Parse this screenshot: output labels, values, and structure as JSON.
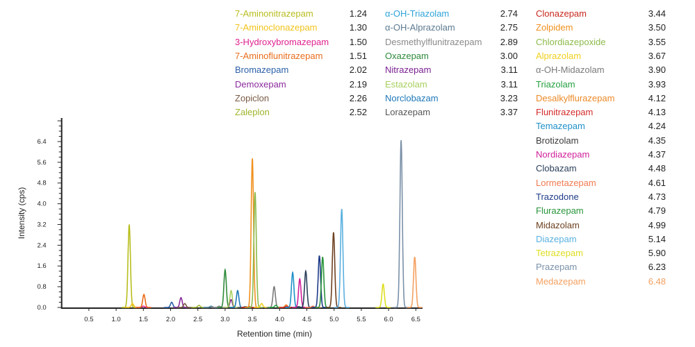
{
  "chart_data": {
    "type": "line",
    "xlabel": "Retention time (min)",
    "ylabel": "Intensity (cps)",
    "xlim": [
      0,
      6.8
    ],
    "ylim": [
      0,
      7.3
    ],
    "xticks": [
      "0.5",
      "1.0",
      "1.5",
      "2.0",
      "2.5",
      "3.0",
      "3.5",
      "4.0",
      "4.5",
      "5.0",
      "5.5",
      "6.0",
      "6.5"
    ],
    "yticks": [
      "0.0",
      "0.8",
      "1.6",
      "2.4",
      "3.2",
      "4.0",
      "4.8",
      "5.6",
      "6.4"
    ],
    "grid": false,
    "legend_placement": "top-right",
    "series": [
      {
        "name": "7-Aminonitrazepam",
        "rt": "1.24",
        "peak": 3.2,
        "color": "#b8bd1e"
      },
      {
        "name": "7-Aminoclonazepam",
        "rt": "1.30",
        "peak": 0.15,
        "color": "#f2c31a"
      },
      {
        "name": "3-Hydroxybromazepam",
        "rt": "1.50",
        "peak": 0.05,
        "color": "#e0208f"
      },
      {
        "name": "7-Aminoflunitrazepam",
        "rt": "1.51",
        "peak": 0.5,
        "color": "#e86c1c"
      },
      {
        "name": "Bromazepam",
        "rt": "2.02",
        "peak": 0.2,
        "color": "#2a5fa8"
      },
      {
        "name": "Demoxepam",
        "rt": "2.19",
        "peak": 0.38,
        "color": "#8a2a9c"
      },
      {
        "name": "Zopiclon",
        "rt": "2.26",
        "peak": 0.15,
        "color": "#7a5a45"
      },
      {
        "name": "Zaleplon",
        "rt": "2.52",
        "peak": 0.08,
        "color": "#9cb52a"
      },
      {
        "name": "α-OH-Triazolam",
        "rt": "2.74",
        "peak": 0.05,
        "color": "#2ea3d8"
      },
      {
        "name": "α-OH-Alprazolam",
        "rt": "2.75",
        "peak": 0.04,
        "color": "#5c7a90"
      },
      {
        "name": "Desmethylflunitrazepam",
        "rt": "2.89",
        "peak": 0.05,
        "color": "#8a8a8a"
      },
      {
        "name": "Oxazepam",
        "rt": "3.00",
        "peak": 1.45,
        "color": "#2e8a3a"
      },
      {
        "name": "Nitrazepam",
        "rt": "3.11",
        "peak": 0.3,
        "color": "#7a2090"
      },
      {
        "name": "Estazolam",
        "rt": "3.11",
        "peak": 0.65,
        "color": "#a8d060"
      },
      {
        "name": "Norclobazam",
        "rt": "3.23",
        "peak": 0.65,
        "color": "#1e78b8"
      },
      {
        "name": "Lorazepam",
        "rt": "3.37",
        "peak": 0.03,
        "color": "#555555"
      },
      {
        "name": "Clonazepam",
        "rt": "3.44",
        "peak": 0.03,
        "color": "#c8281e"
      },
      {
        "name": "Zolpidem",
        "rt": "3.50",
        "peak": 5.75,
        "color": "#f0901e"
      },
      {
        "name": "Chlordiazepoxide",
        "rt": "3.55",
        "peak": 4.45,
        "color": "#8cba4a"
      },
      {
        "name": "Alprazolam",
        "rt": "3.67",
        "peak": 0.15,
        "color": "#f0d020"
      },
      {
        "name": "α-OH-Midazolam",
        "rt": "3.90",
        "peak": 0.8,
        "color": "#7a7a7a"
      },
      {
        "name": "Triazolam",
        "rt": "3.93",
        "peak": 0.08,
        "color": "#24a040"
      },
      {
        "name": "Desalkylflurazepam",
        "rt": "4.12",
        "peak": 0.1,
        "color": "#ec8a28"
      },
      {
        "name": "Flunitrazepam",
        "rt": "4.13",
        "peak": 0.05,
        "color": "#d42a2a"
      },
      {
        "name": "Temazepam",
        "rt": "4.24",
        "peak": 1.35,
        "color": "#1e90c8"
      },
      {
        "name": "Brotizolam",
        "rt": "4.35",
        "peak": 0.03,
        "color": "#3a3a3a"
      },
      {
        "name": "Nordiazepam",
        "rt": "4.37",
        "peak": 1.1,
        "color": "#d0209a"
      },
      {
        "name": "Clobazam",
        "rt": "4.48",
        "peak": 1.4,
        "color": "#2a3e5a"
      },
      {
        "name": "Lormetazepam",
        "rt": "4.61",
        "peak": 0.05,
        "color": "#f07a50"
      },
      {
        "name": "Trazodone",
        "rt": "4.73",
        "peak": 2.0,
        "color": "#1e3a88"
      },
      {
        "name": "Flurazepam",
        "rt": "4.79",
        "peak": 1.95,
        "color": "#28943a"
      },
      {
        "name": "Midazolam",
        "rt": "4.99",
        "peak": 2.9,
        "color": "#6e4020"
      },
      {
        "name": "Diazepam",
        "rt": "5.14",
        "peak": 3.8,
        "color": "#5ab0e0"
      },
      {
        "name": "Tetrazepam",
        "rt": "5.90",
        "peak": 0.9,
        "color": "#dede20"
      },
      {
        "name": "Prazepam",
        "rt": "6.23",
        "peak": 6.45,
        "color": "#7a90a8"
      },
      {
        "name": "Medazepam",
        "rt": "6.48",
        "peak": 1.95,
        "color": "#f4a060",
        "value_color": "#f4a060"
      }
    ]
  }
}
